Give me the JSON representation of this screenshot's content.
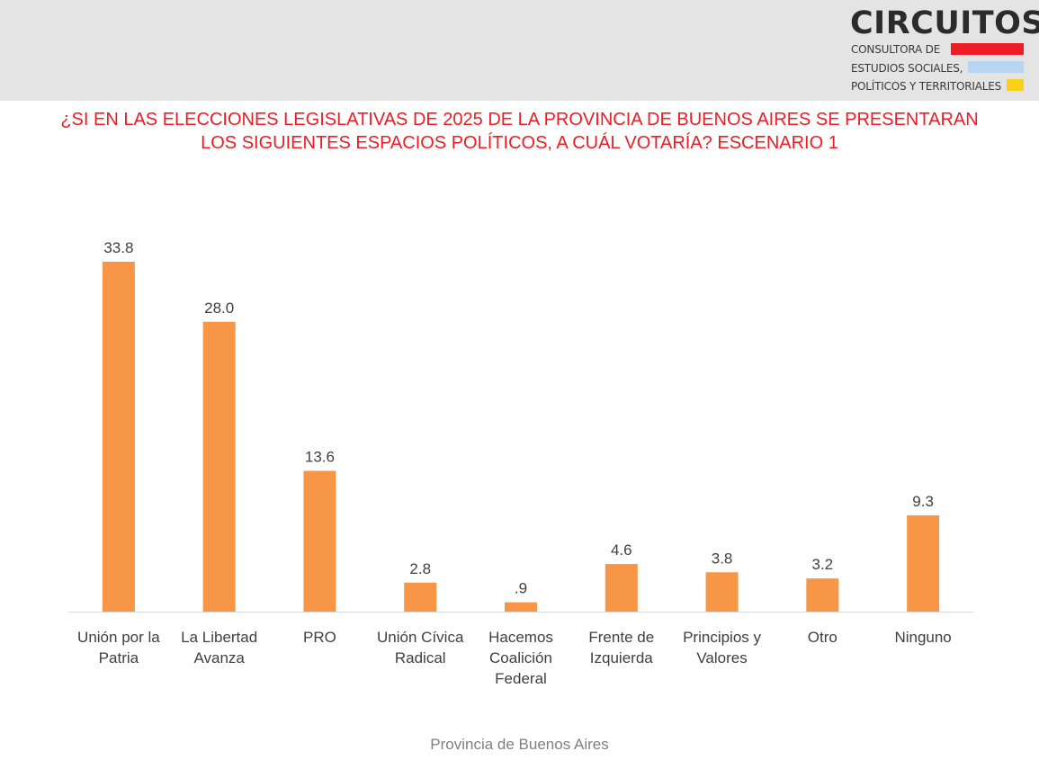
{
  "header": {
    "logo": {
      "name": "CIRCUITOS",
      "lines": [
        "CONSULTORA DE",
        "ESTUDIOS SOCIALES,",
        "POLÍTICOS Y TERRITORIALES"
      ],
      "stripe_colors": [
        "#ee1c25",
        "#b5d5f2",
        "#f7d117"
      ]
    }
  },
  "footer": {
    "caption": "Provincia de Buenos Aires"
  },
  "colors": {
    "bar": "#f79646",
    "title": "#ee1c25",
    "axis": "#d9d9d9"
  },
  "chart_data": {
    "type": "bar",
    "title": "¿SI EN LAS ELECCIONES LEGISLATIVAS DE 2025 DE LA PROVINCIA DE BUENOS AIRES SE PRESENTARAN LOS SIGUIENTES ESPACIOS POLÍTICOS, A CUÁL VOTARÍA? ESCENARIO 1",
    "categories": [
      [
        "Unión por la",
        "Patria"
      ],
      [
        "La Libertad",
        "Avanza"
      ],
      [
        "PRO"
      ],
      [
        "Unión Cívica",
        "Radical"
      ],
      [
        "Hacemos",
        "Coalición",
        "Federal"
      ],
      [
        "Frente de",
        "Izquierda"
      ],
      [
        "Principios y",
        "Valores"
      ],
      [
        "Otro"
      ],
      [
        "Ninguno"
      ]
    ],
    "values": [
      33.8,
      28.0,
      13.6,
      2.8,
      0.9,
      4.6,
      3.8,
      3.2,
      9.3
    ],
    "value_labels": [
      "33.8",
      "28.0",
      "13.6",
      "2.8",
      ".9",
      "4.6",
      "3.8",
      "3.2",
      "9.3"
    ],
    "ylim": [
      0,
      33.8
    ],
    "grid": false,
    "legend": "none"
  }
}
